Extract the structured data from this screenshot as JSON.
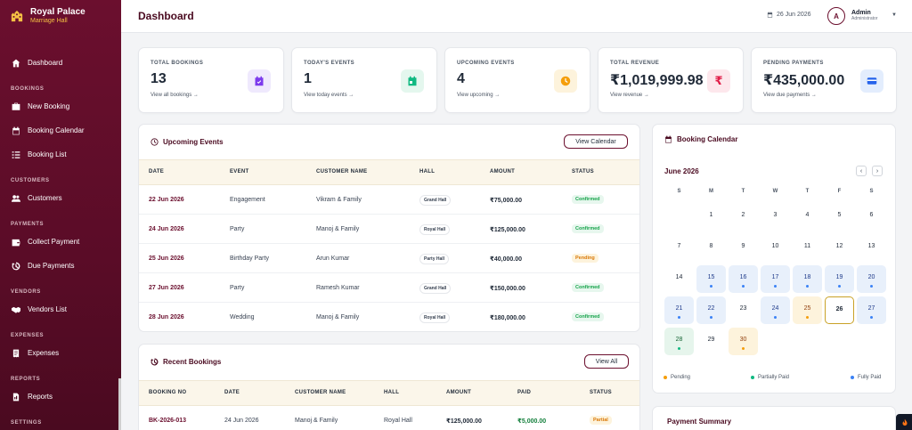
{
  "brand": {
    "title": "Royal Palace",
    "subtitle": "Marriage Hall"
  },
  "sidebar": {
    "dashboard": "Dashboard",
    "sections": {
      "bookings": "BOOKINGS",
      "customers": "CUSTOMERS",
      "payments": "PAYMENTS",
      "vendors": "VENDORS",
      "expenses": "EXPENSES",
      "reports": "REPORTS",
      "settings": "SETTINGS"
    },
    "items": {
      "new_booking": "New Booking",
      "booking_calendar": "Booking Calendar",
      "booking_list": "Booking List",
      "customers": "Customers",
      "collect_payment": "Collect Payment",
      "due_payments": "Due Payments",
      "vendors_list": "Vendors List",
      "expenses": "Expenses",
      "reports": "Reports"
    }
  },
  "header": {
    "title": "Dashboard",
    "date": "26 Jun 2026",
    "avatar_letter": "A",
    "user_name": "Admin",
    "user_role": "Administrator"
  },
  "stats": [
    {
      "label": "TOTAL BOOKINGS",
      "value": "13",
      "link": "View all bookings →",
      "icon": "calendar-check-icon",
      "color": "#7c3aed",
      "bg": "#efe9fd"
    },
    {
      "label": "TODAY'S EVENTS",
      "value": "1",
      "link": "View today events →",
      "icon": "calendar-day-icon",
      "color": "#10b981",
      "bg": "#e4f7ee"
    },
    {
      "label": "UPCOMING EVENTS",
      "value": "4",
      "link": "View upcoming →",
      "icon": "clock-icon",
      "color": "#f59e0b",
      "bg": "#fdf3dc"
    },
    {
      "label": "TOTAL REVENUE",
      "value": "₹1,019,999.98",
      "link": "View revenue →",
      "icon": "rupee-icon",
      "color": "#e11d48",
      "bg": "#fde7ec"
    },
    {
      "label": "PENDING PAYMENTS",
      "value": "₹435,000.00",
      "link": "View due payments →",
      "icon": "credit-card-icon",
      "color": "#2563eb",
      "bg": "#e3edfd"
    }
  ],
  "upcoming": {
    "title": "Upcoming Events",
    "button": "View Calendar",
    "columns": [
      "DATE",
      "EVENT",
      "CUSTOMER NAME",
      "HALL",
      "AMOUNT",
      "STATUS"
    ],
    "rows": [
      {
        "date": "22 Jun 2026",
        "event": "Engagement",
        "customer": "Vikram & Family",
        "hall": "Grand Hall",
        "amount": "₹75,000.00",
        "status": "Confirmed"
      },
      {
        "date": "24 Jun 2026",
        "event": "Party",
        "customer": "Manoj & Family",
        "hall": "Royal Hall",
        "amount": "₹125,000.00",
        "status": "Confirmed"
      },
      {
        "date": "25 Jun 2026",
        "event": "Birthday Party",
        "customer": "Arun Kumar",
        "hall": "Party Hall",
        "amount": "₹40,000.00",
        "status": "Pending"
      },
      {
        "date": "27 Jun 2026",
        "event": "Party",
        "customer": "Ramesh Kumar",
        "hall": "Grand Hall",
        "amount": "₹150,000.00",
        "status": "Confirmed"
      },
      {
        "date": "28 Jun 2026",
        "event": "Wedding",
        "customer": "Manoj & Family",
        "hall": "Royal Hall",
        "amount": "₹180,000.00",
        "status": "Confirmed"
      }
    ]
  },
  "recent": {
    "title": "Recent Bookings",
    "button": "View All",
    "columns": [
      "BOOKING NO",
      "DATE",
      "CUSTOMER NAME",
      "HALL",
      "AMOUNT",
      "PAID",
      "STATUS"
    ],
    "rows": [
      {
        "booking_no": "BK-2026-013",
        "date": "24 Jun 2026",
        "customer": "Manoj & Family",
        "hall": "Royal Hall",
        "amount": "₹125,000.00",
        "paid": "₹5,000.00",
        "status": "Partial"
      }
    ]
  },
  "calendar": {
    "title": "Booking Calendar",
    "month": "June 2026",
    "prev": "‹",
    "next": "›",
    "dow": [
      "S",
      "M",
      "T",
      "W",
      "T",
      "F",
      "S"
    ],
    "weeks": [
      [
        "",
        "1",
        "2",
        "3",
        "4",
        "5",
        "6"
      ],
      [
        "7",
        "8",
        "9",
        "10",
        "11",
        "12",
        "13"
      ],
      [
        "14",
        "15",
        "16",
        "17",
        "18",
        "19",
        "20"
      ],
      [
        "21",
        "22",
        "23",
        "24",
        "25",
        "26",
        "27"
      ],
      [
        "28",
        "29",
        "30",
        "",
        "",
        "",
        ""
      ]
    ],
    "marks": {
      "15": "blue",
      "16": "blue",
      "17": "blue",
      "18": "blue",
      "19": "blue",
      "20": "blue",
      "21": "blue",
      "22": "blue",
      "24": "blue",
      "25": "yellow",
      "27": "blue",
      "28": "green",
      "30": "yellow"
    },
    "today": "26",
    "legend": {
      "pending": "Pending",
      "partially_paid": "Partially Paid",
      "fully_paid": "Fully Paid"
    }
  },
  "payment_summary": {
    "title": "Payment Summary"
  }
}
